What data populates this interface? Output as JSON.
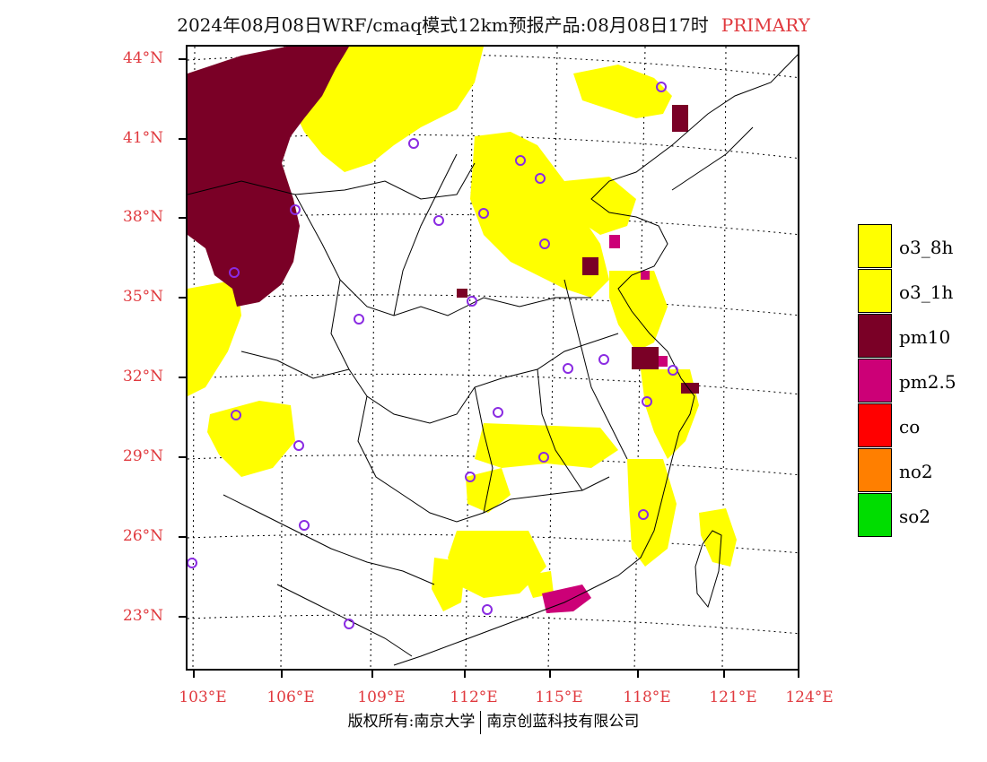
{
  "title": {
    "main": "2024年08月08日WRF/cmaq模式12km预报产品:08月08日17时",
    "tag": "PRIMARY",
    "tag_color": "#e0393e"
  },
  "map": {
    "lat_labels": [
      "44°N",
      "41°N",
      "38°N",
      "35°N",
      "32°N",
      "29°N",
      "26°N",
      "23°N"
    ],
    "lon_labels": [
      "103°E",
      "106°E",
      "109°E",
      "112°E",
      "115°E",
      "118°E",
      "121°E",
      "124°E"
    ],
    "label_color": "#e0393e",
    "pollutant_colors": {
      "o3_8h": "#ffff00",
      "o3_1h": "#ffff00",
      "pm10": "#7a0026",
      "pm2.5": "#cc0077",
      "co": "#ff0000",
      "no2": "#ff7f00",
      "so2": "#00dd00"
    },
    "station_marker_color": "#8a2be2"
  },
  "legend": [
    {
      "label": "o3_8h",
      "color": "#ffff00"
    },
    {
      "label": "o3_1h",
      "color": "#ffff00"
    },
    {
      "label": "pm10",
      "color": "#7a0026"
    },
    {
      "label": "pm2.5",
      "color": "#cc0077"
    },
    {
      "label": "co",
      "color": "#ff0000"
    },
    {
      "label": "no2",
      "color": "#ff7f00"
    },
    {
      "label": "so2",
      "color": "#00dd00"
    }
  ],
  "footer": {
    "left": "版权所有:南京大学",
    "right": "南京创蓝科技有限公司"
  }
}
